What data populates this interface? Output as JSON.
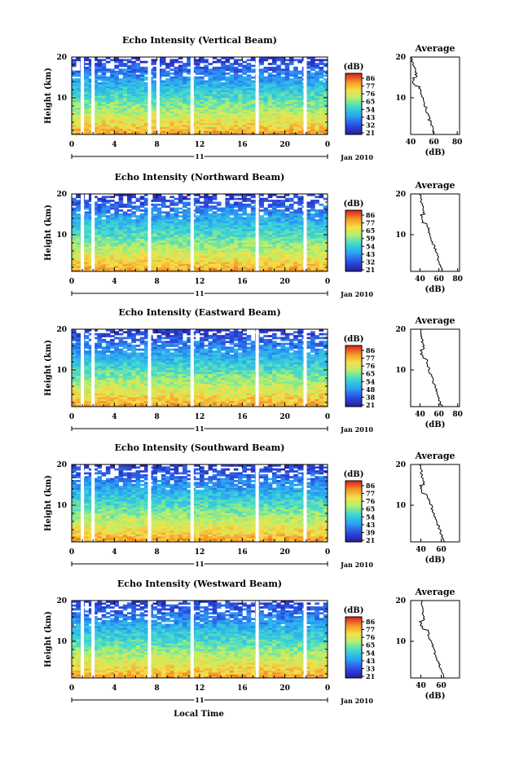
{
  "figure": {
    "x_common_label": "Local Time",
    "date_label": "Jan 2010",
    "day_label": "11",
    "colorbar_unit": "(dB)",
    "avg_title": "Average",
    "avg_xlabel": "(dB)",
    "height_label": "Height (km)"
  },
  "chart_data": [
    {
      "type": "heatmap",
      "title": "Echo Intensity (Vertical Beam)",
      "xlabel": "Local Time",
      "ylabel": "Height (km)",
      "x_ticks": [
        "0",
        "4",
        "8",
        "12",
        "16",
        "20",
        "0"
      ],
      "xlim": [
        0,
        24
      ],
      "y_ticks": [
        "10",
        "20"
      ],
      "ylim": [
        1,
        20
      ],
      "colorbar": {
        "unit": "(dB)",
        "ticks": [
          "86",
          "77",
          "76",
          "65",
          "54",
          "43",
          "32",
          "21"
        ],
        "range": [
          21,
          86
        ]
      },
      "profile_level": [
        60,
        55,
        50,
        45,
        40
      ],
      "gap_hours": [
        1.0,
        2.0,
        7.3,
        8.1,
        11.3,
        17.4,
        21.9
      ],
      "profile": {
        "title": "Average",
        "xlabel": "(dB)",
        "x_ticks": [
          "40",
          "60",
          "80"
        ],
        "xlim": [
          40,
          82
        ],
        "y_ticks": [
          "10",
          "20"
        ],
        "ylim": [
          1,
          20
        ]
      }
    },
    {
      "type": "heatmap",
      "title": "Echo Intensity (Northward Beam)",
      "xlabel": "Local Time",
      "ylabel": "Height (km)",
      "x_ticks": [
        "0",
        "4",
        "8",
        "12",
        "16",
        "20",
        "0"
      ],
      "xlim": [
        0,
        24
      ],
      "y_ticks": [
        "10",
        "20"
      ],
      "ylim": [
        1,
        20
      ],
      "colorbar": {
        "unit": "(dB)",
        "ticks": [
          "86",
          "77",
          "65",
          "59",
          "54",
          "43",
          "32",
          "21"
        ],
        "range": [
          21,
          86
        ]
      },
      "profile_level": [
        64,
        57,
        50,
        44,
        40
      ],
      "gap_hours": [
        1.0,
        2.0,
        7.3,
        11.3,
        17.4,
        21.9
      ],
      "profile": {
        "title": "Average",
        "xlabel": "(dB)",
        "x_ticks": [
          "40",
          "60",
          "80"
        ],
        "xlim": [
          30,
          82
        ],
        "y_ticks": [
          "10",
          "20"
        ],
        "ylim": [
          1,
          20
        ]
      }
    },
    {
      "type": "heatmap",
      "title": "Echo Intensity (Eastward Beam)",
      "xlabel": "Local Time",
      "ylabel": "Height (km)",
      "x_ticks": [
        "0",
        "4",
        "8",
        "12",
        "16",
        "20",
        "0"
      ],
      "xlim": [
        0,
        24
      ],
      "y_ticks": [
        "10",
        "20"
      ],
      "ylim": [
        1,
        20
      ],
      "colorbar": {
        "unit": "(dB)",
        "ticks": [
          "86",
          "77",
          "76",
          "65",
          "54",
          "48",
          "38",
          "21"
        ],
        "range": [
          21,
          86
        ]
      },
      "profile_level": [
        63,
        56,
        49,
        44,
        40
      ],
      "gap_hours": [
        1.0,
        2.0,
        7.3,
        11.3,
        17.4,
        21.9
      ],
      "profile": {
        "title": "Average",
        "xlabel": "(dB)",
        "x_ticks": [
          "40",
          "60",
          "80"
        ],
        "xlim": [
          30,
          82
        ],
        "y_ticks": [
          "10",
          "20"
        ],
        "ylim": [
          1,
          20
        ]
      }
    },
    {
      "type": "heatmap",
      "title": "Echo Intensity (Southward Beam)",
      "xlabel": "Local Time",
      "ylabel": "Height (km)",
      "x_ticks": [
        "0",
        "4",
        "8",
        "12",
        "16",
        "20",
        "0"
      ],
      "xlim": [
        0,
        24
      ],
      "y_ticks": [
        "10",
        "20"
      ],
      "ylim": [
        1,
        20
      ],
      "colorbar": {
        "unit": "(dB)",
        "ticks": [
          "86",
          "77",
          "76",
          "65",
          "54",
          "43",
          "39",
          "21"
        ],
        "range": [
          21,
          86
        ]
      },
      "profile_level": [
        63,
        56,
        49,
        43,
        39
      ],
      "gap_hours": [
        1.0,
        2.0,
        7.3,
        11.3,
        17.4,
        21.9
      ],
      "profile": {
        "title": "Average",
        "xlabel": "(dB)",
        "x_ticks": [
          "40",
          "60"
        ],
        "xlim": [
          30,
          78
        ],
        "y_ticks": [
          "10",
          "20"
        ],
        "ylim": [
          1,
          20
        ]
      }
    },
    {
      "type": "heatmap",
      "title": "Echo Intensity (Westward Beam)",
      "xlabel": "Local Time",
      "ylabel": "Height (km)",
      "x_ticks": [
        "0",
        "4",
        "8",
        "12",
        "16",
        "20",
        "0"
      ],
      "xlim": [
        0,
        24
      ],
      "y_ticks": [
        "10",
        "20"
      ],
      "ylim": [
        1,
        20
      ],
      "colorbar": {
        "unit": "(dB)",
        "ticks": [
          "86",
          "77",
          "76",
          "65",
          "54",
          "43",
          "33",
          "21"
        ],
        "range": [
          21,
          86
        ]
      },
      "profile_level": [
        63,
        56,
        49,
        43,
        40
      ],
      "gap_hours": [
        1.0,
        2.0,
        7.3,
        11.3,
        17.4,
        21.9
      ],
      "profile": {
        "title": "Average",
        "xlabel": "(dB)",
        "x_ticks": [
          "40",
          "60"
        ],
        "xlim": [
          30,
          78
        ],
        "y_ticks": [
          "10",
          "20"
        ],
        "ylim": [
          1,
          20
        ]
      }
    }
  ]
}
